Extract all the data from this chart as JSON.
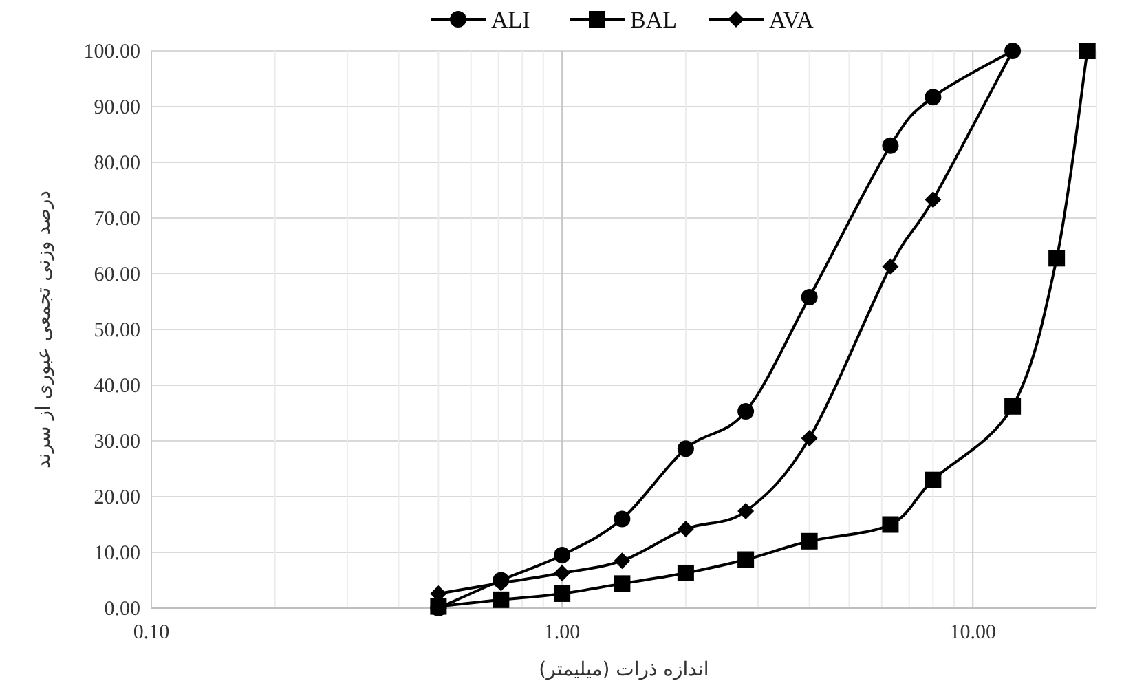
{
  "chart_data": {
    "type": "line",
    "xlabel": "اندازه ذرات (میلیمتر)",
    "ylabel": "درصد وزنی تجمعی عبوری از سرند",
    "log": "x",
    "xlim": [
      0.1,
      20
    ],
    "ylim": [
      0,
      100
    ],
    "xticks": [
      {
        "value": 0.1,
        "label": "0.10"
      },
      {
        "value": 0.2,
        "label": null
      },
      {
        "value": 0.3,
        "label": null
      },
      {
        "value": 0.4,
        "label": null
      },
      {
        "value": 0.5,
        "label": null
      },
      {
        "value": 0.6,
        "label": null
      },
      {
        "value": 0.7,
        "label": null
      },
      {
        "value": 0.8,
        "label": null
      },
      {
        "value": 0.9,
        "label": null
      },
      {
        "value": 1,
        "label": "1.00"
      },
      {
        "value": 2,
        "label": null
      },
      {
        "value": 3,
        "label": null
      },
      {
        "value": 4,
        "label": null
      },
      {
        "value": 5,
        "label": null
      },
      {
        "value": 6,
        "label": null
      },
      {
        "value": 7,
        "label": null
      },
      {
        "value": 8,
        "label": null
      },
      {
        "value": 9,
        "label": null
      },
      {
        "value": 10,
        "label": "10.00"
      },
      {
        "value": 20,
        "label": null
      }
    ],
    "yticks": [
      {
        "value": 0,
        "label": "0.00"
      },
      {
        "value": 10,
        "label": "10.00"
      },
      {
        "value": 20,
        "label": "20.00"
      },
      {
        "value": 30,
        "label": "30.00"
      },
      {
        "value": 40,
        "label": "40.00"
      },
      {
        "value": 50,
        "label": "50.00"
      },
      {
        "value": 60,
        "label": "60.00"
      },
      {
        "value": 70,
        "label": "70.00"
      },
      {
        "value": 80,
        "label": "80.00"
      },
      {
        "value": 90,
        "label": "90.00"
      },
      {
        "value": 100,
        "label": "100.00"
      }
    ],
    "grid": true,
    "legend": "top",
    "line_style": "solid",
    "series": [
      {
        "name": "ALI",
        "color": "#000000",
        "marker": "circle",
        "x": [
          0.5,
          0.71,
          1,
          1.4,
          2,
          2.8,
          4,
          6.3,
          8,
          12.5
        ],
        "values": [
          0,
          5,
          9.5,
          16,
          28.6,
          35.3,
          55.8,
          83,
          91.7,
          100
        ]
      },
      {
        "name": "BAL",
        "color": "#000000",
        "marker": "square",
        "x": [
          0.5,
          0.71,
          1,
          1.4,
          2,
          2.8,
          4,
          6.3,
          8,
          12.5,
          16,
          19
        ],
        "values": [
          0.3,
          1.5,
          2.6,
          4.4,
          6.3,
          8.7,
          12,
          15,
          23,
          36.2,
          62.8,
          100
        ]
      },
      {
        "name": "AVA",
        "color": "#000000",
        "marker": "diamond",
        "x": [
          0.5,
          0.71,
          1,
          1.4,
          2,
          2.8,
          4,
          6.3,
          8,
          12.5
        ],
        "values": [
          2.6,
          4.5,
          6.3,
          8.5,
          14.2,
          17.4,
          30.5,
          61.3,
          73.3,
          100
        ]
      }
    ]
  }
}
